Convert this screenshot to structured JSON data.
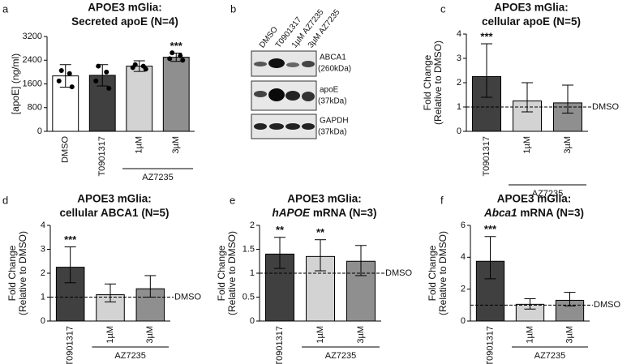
{
  "chart_data": [
    {
      "type": "bar",
      "panel": "a",
      "title": "APOE3 mGlia:",
      "subtitle": [
        {
          "text": "Secreted apoE (N=4)"
        }
      ],
      "ylabel": [
        "[apoE] (ng/ml)"
      ],
      "categories": [
        "DMSO",
        "T0901317",
        "1µM",
        "3µM"
      ],
      "values": [
        1870,
        1890,
        2200,
        2500
      ],
      "error_plus": [
        380,
        360,
        180,
        140
      ],
      "error_minus": [
        380,
        360,
        180,
        140
      ],
      "points": [
        [
          2050,
          1950,
          1700,
          1500
        ],
        [
          2200,
          2000,
          1700,
          1450
        ],
        [
          2250,
          2200,
          2150,
          2100
        ],
        [
          2650,
          2550,
          2450,
          2400
        ]
      ],
      "colors": [
        "#ffffff",
        "#404040",
        "#d3d3d3",
        "#8f8f8f"
      ],
      "ylim": [
        0,
        3200
      ],
      "yticks": [
        0,
        800,
        1600,
        2400,
        3200
      ],
      "annotations": [
        {
          "index": 3,
          "text": "***"
        }
      ],
      "groups": [
        {
          "label": "AZ7235",
          "start": 2,
          "end": 3
        }
      ]
    },
    {
      "type": "bar",
      "panel": "c",
      "title": "APOE3 mGlia:",
      "subtitle": [
        {
          "text": "cellular apoE (N=5)"
        }
      ],
      "ylabel": [
        "Fold Change",
        "(Relative to DMSO)"
      ],
      "categories": [
        "T0901317",
        "1µM",
        "3µM"
      ],
      "values": [
        2.25,
        1.25,
        1.17
      ],
      "error_plus": [
        1.35,
        0.75,
        0.73
      ],
      "error_minus": [
        0.85,
        0.45,
        0.42
      ],
      "colors": [
        "#404040",
        "#d3d3d3",
        "#8f8f8f"
      ],
      "ylim": [
        0,
        4
      ],
      "yticks": [
        0,
        1,
        2,
        3,
        4
      ],
      "reference_line": {
        "value": 1,
        "label": "DMSO"
      },
      "annotations": [
        {
          "index": 0,
          "text": "***"
        }
      ],
      "groups": [
        {
          "label": "AZ7235",
          "start": 1,
          "end": 2
        }
      ]
    },
    {
      "type": "bar",
      "panel": "d",
      "title": "APOE3 mGlia:",
      "subtitle": [
        {
          "text": "cellular ABCA1 (N=5)"
        }
      ],
      "ylabel": [
        "Fold Change",
        "(Relative to DMSO)"
      ],
      "categories": [
        "T0901317",
        "1µM",
        "3µM"
      ],
      "values": [
        2.25,
        1.1,
        1.35
      ],
      "error_plus": [
        0.85,
        0.45,
        0.55
      ],
      "error_minus": [
        0.65,
        0.3,
        0.35
      ],
      "colors": [
        "#404040",
        "#d3d3d3",
        "#8f8f8f"
      ],
      "ylim": [
        0,
        4
      ],
      "yticks": [
        0,
        1,
        2,
        3,
        4
      ],
      "reference_line": {
        "value": 1,
        "label": "DMSO"
      },
      "annotations": [
        {
          "index": 0,
          "text": "***"
        }
      ],
      "groups": [
        {
          "label": "AZ7235",
          "start": 1,
          "end": 2
        }
      ]
    },
    {
      "type": "bar",
      "panel": "e",
      "title": "APOE3 mGlia:",
      "subtitle": [
        {
          "text": "hAPOE",
          "italic": true
        },
        {
          "text": " mRNA (N=3)"
        }
      ],
      "ylabel": [
        "Fold Change",
        "(Relative to DMSO)"
      ],
      "categories": [
        "T0901317",
        "1µM",
        "3µM"
      ],
      "values": [
        1.4,
        1.35,
        1.25
      ],
      "error_plus": [
        0.35,
        0.35,
        0.33
      ],
      "error_minus": [
        0.3,
        0.3,
        0.3
      ],
      "colors": [
        "#404040",
        "#d3d3d3",
        "#8f8f8f"
      ],
      "ylim": [
        0,
        2
      ],
      "yticks": [
        0,
        0.5,
        1,
        1.5,
        2
      ],
      "reference_line": {
        "value": 1,
        "label": "DMSO"
      },
      "annotations": [
        {
          "index": 0,
          "text": "**"
        },
        {
          "index": 1,
          "text": "**"
        }
      ],
      "groups": [
        {
          "label": "AZ7235",
          "start": 1,
          "end": 2
        }
      ]
    },
    {
      "type": "bar",
      "panel": "f",
      "title": "APOE3 mGlia:",
      "subtitle": [
        {
          "text": "Abca1",
          "italic": true
        },
        {
          "text": " mRNA (N=3)"
        }
      ],
      "ylabel": [
        "Fold Change",
        "(Relative to DMSO)"
      ],
      "categories": [
        "T0901317",
        "1µM",
        "3µM"
      ],
      "values": [
        3.75,
        1.05,
        1.3
      ],
      "error_plus": [
        1.55,
        0.35,
        0.5
      ],
      "error_minus": [
        1.1,
        0.3,
        0.35
      ],
      "colors": [
        "#404040",
        "#d3d3d3",
        "#8f8f8f"
      ],
      "ylim": [
        0,
        6
      ],
      "yticks": [
        0,
        2,
        4,
        6
      ],
      "reference_line": {
        "value": 1,
        "label": "DMSO"
      },
      "annotations": [
        {
          "index": 0,
          "text": "***"
        }
      ],
      "groups": [
        {
          "label": "AZ7235",
          "start": 1,
          "end": 2
        }
      ]
    }
  ],
  "blot": {
    "panel": "b",
    "lanes": [
      "DMSO",
      "T0901317",
      "1µM AZ7235",
      "3µM AZ7235"
    ],
    "rows": [
      {
        "protein": "ABCA1",
        "size": "(260kDa)"
      },
      {
        "protein": "apoE",
        "size": "(37kDa)"
      },
      {
        "protein": "GAPDH",
        "size": "(37kDa)"
      }
    ]
  }
}
